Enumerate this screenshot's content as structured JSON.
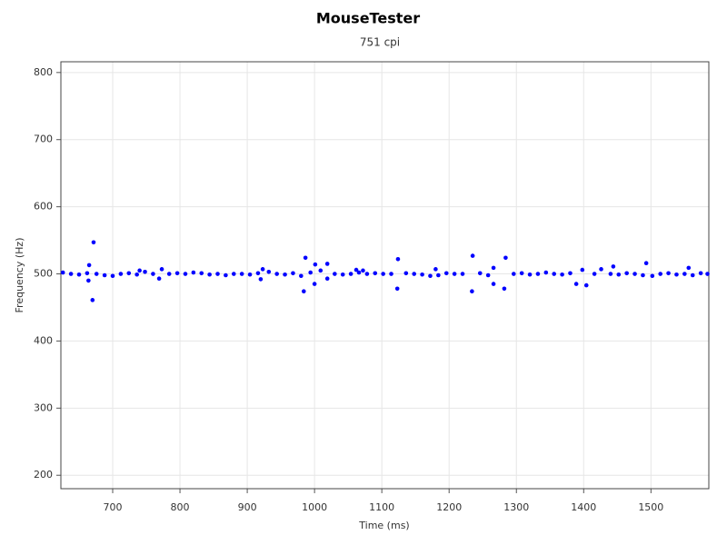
{
  "chart_data": {
    "type": "scatter",
    "title": "MouseTester",
    "subtitle": "751 cpi",
    "x_label": "Time (ms)",
    "y_label": "Frequency (Hz)",
    "color": "#0000ff",
    "grid": true,
    "xlim": [
      623,
      1586
    ],
    "ylim": [
      180,
      816
    ],
    "xticks": [
      700,
      800,
      900,
      1000,
      1100,
      1200,
      1300,
      1400,
      1500
    ],
    "yticks": [
      200,
      300,
      400,
      500,
      600,
      700,
      800
    ],
    "x": [
      626,
      638,
      650,
      662,
      676,
      688,
      700,
      712,
      724,
      736,
      748,
      760,
      784,
      796,
      808,
      820,
      832,
      844,
      856,
      868,
      880,
      892,
      904,
      916,
      932,
      944,
      956,
      968,
      980,
      994,
      1030,
      1042,
      1054,
      1066,
      1078,
      1090,
      1102,
      1114,
      1136,
      1148,
      1160,
      1172,
      1184,
      1196,
      1208,
      1220,
      1246,
      1258,
      1296,
      1308,
      1320,
      1332,
      1344,
      1356,
      1368,
      1380,
      1416,
      1440,
      1452,
      1464,
      1476,
      1488,
      1502,
      1514,
      1526,
      1538,
      1550,
      1562,
      1574,
      1584,
      671.6,
      670,
      665,
      664,
      986.5,
      984,
      1001,
      1000,
      1009,
      1019,
      1019,
      1124,
      1123,
      1235,
      1234,
      1266,
      1266,
      1284,
      1282,
      1389,
      1404,
      1493,
      1426,
      773,
      769,
      923,
      920,
      740,
      1062,
      1072,
      1180,
      1398,
      1444,
      1556
    ],
    "values": [
      502,
      500,
      499,
      501,
      500,
      498,
      497,
      500,
      501,
      499,
      503,
      500,
      500,
      501,
      500,
      502,
      501,
      499,
      500,
      498,
      500,
      500,
      499,
      501,
      503,
      500,
      499,
      501,
      497,
      502,
      500,
      499,
      500,
      502,
      500,
      501,
      500,
      500,
      501,
      500,
      499,
      497,
      498,
      501,
      500,
      500,
      501,
      498,
      500,
      501,
      499,
      500,
      502,
      500,
      499,
      501,
      500,
      500,
      499,
      501,
      500,
      498,
      497,
      500,
      501,
      499,
      500,
      498,
      501,
      500,
      547,
      461,
      513,
      490,
      524,
      474,
      514,
      485,
      505,
      515,
      493,
      522,
      478,
      527,
      474,
      509,
      485,
      524,
      478,
      485,
      483,
      516,
      507,
      507,
      493,
      507,
      492,
      505,
      506,
      505,
      507,
      506,
      511,
      509
    ]
  }
}
